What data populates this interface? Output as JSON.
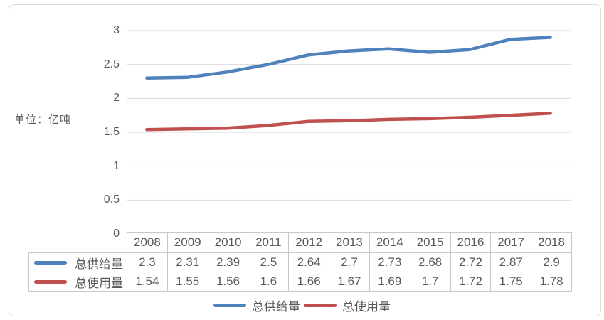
{
  "chart": {
    "unit_label": "单位：亿吨",
    "grid_color": "#d9d9d9",
    "text_color": "#595959",
    "border_color": "#c8c8c8"
  },
  "chart_data": {
    "type": "line",
    "title": "",
    "xlabel": "",
    "ylabel": "单位：亿吨",
    "categories": [
      "2008",
      "2009",
      "2010",
      "2011",
      "2012",
      "2013",
      "2014",
      "2015",
      "2016",
      "2017",
      "2018"
    ],
    "series": [
      {
        "name": "总供给量",
        "color": "#4F81BD",
        "values": [
          2.3,
          2.31,
          2.39,
          2.5,
          2.64,
          2.7,
          2.73,
          2.68,
          2.72,
          2.87,
          2.9
        ]
      },
      {
        "name": "总使用量",
        "color": "#C0504D",
        "values": [
          1.54,
          1.55,
          1.56,
          1.6,
          1.66,
          1.67,
          1.69,
          1.7,
          1.72,
          1.75,
          1.78
        ]
      }
    ],
    "ylim": [
      0,
      3
    ],
    "y_ticks": [
      3,
      2.5,
      2,
      1.5,
      1,
      0.5,
      0
    ],
    "grid": "horizontal",
    "legend_position": "bottom",
    "data_table_shown": true
  }
}
